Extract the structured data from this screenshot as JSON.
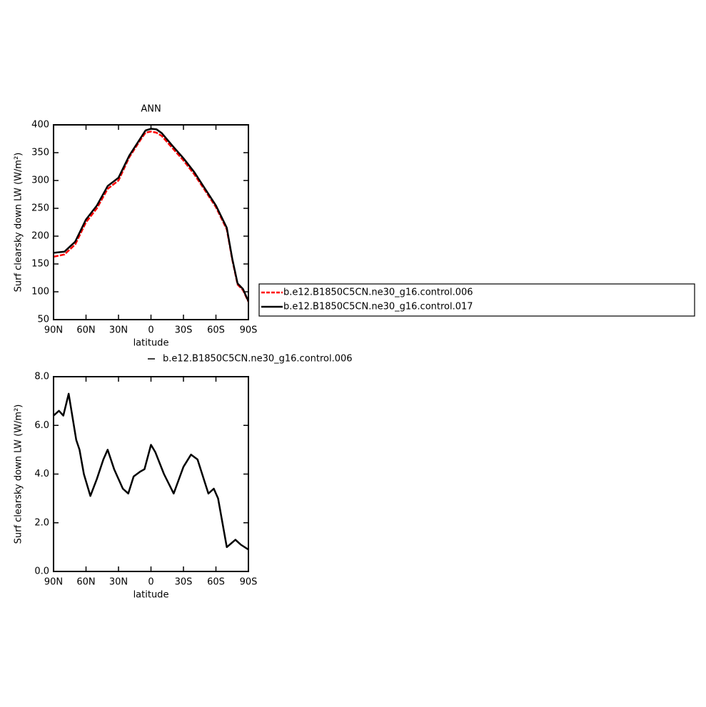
{
  "chart_data": [
    {
      "type": "line",
      "title": "ANN",
      "xlabel": "latitude",
      "ylabel": "Surf clearsky down LW (W/m²)",
      "x": [
        90,
        80,
        70,
        60,
        50,
        40,
        30,
        20,
        10,
        5,
        0,
        -5,
        -10,
        -20,
        -30,
        -40,
        -50,
        -60,
        -70,
        -75,
        -80,
        -85,
        -90
      ],
      "series": [
        {
          "name": "b.e12.B1850C5CN.ne30_g16.control.006",
          "color": "#ff0000",
          "dash": true,
          "values": [
            163,
            167,
            185,
            225,
            250,
            285,
            300,
            342,
            372,
            386,
            388,
            386,
            380,
            358,
            336,
            311,
            282,
            252,
            212,
            158,
            113,
            103,
            82
          ]
        },
        {
          "name": "b.e12.B1850C5CN.ne30_g16.control.017",
          "color": "#000000",
          "dash": false,
          "values": [
            170,
            172,
            190,
            230,
            255,
            290,
            305,
            345,
            375,
            390,
            393,
            392,
            385,
            362,
            340,
            315,
            285,
            255,
            215,
            160,
            115,
            105,
            83
          ]
        }
      ],
      "xlim": [
        90,
        -90
      ],
      "ylim": [
        50,
        400
      ],
      "xticks": [
        {
          "value": 90,
          "label": "90N"
        },
        {
          "value": 60,
          "label": "60N"
        },
        {
          "value": 30,
          "label": "30N"
        },
        0,
        {
          "value": -30,
          "label": "30S"
        },
        {
          "value": -60,
          "label": "60S"
        },
        {
          "value": -90,
          "label": "90S"
        }
      ],
      "yticks": [
        50,
        100,
        150,
        200,
        250,
        300,
        350,
        400
      ],
      "legend": "right"
    },
    {
      "type": "line",
      "xlabel": "latitude",
      "ylabel": "Surf clearsky down LW (W/m²)",
      "x": [
        90,
        85,
        81,
        76,
        69,
        66,
        62,
        56,
        50,
        44,
        40,
        34,
        26,
        21,
        16,
        10,
        6,
        0,
        -4,
        -12,
        -21,
        -30,
        -37,
        -43,
        -53,
        -58,
        -62,
        -70,
        -78,
        -83,
        -90
      ],
      "series": [
        {
          "name": "b.e12.B1850C5CN.ne30_g16.control.006",
          "color": "#000000",
          "dash": false,
          "values": [
            6.4,
            6.6,
            6.4,
            7.3,
            5.4,
            5.0,
            4.0,
            3.1,
            3.8,
            4.6,
            5.0,
            4.2,
            3.4,
            3.2,
            3.9,
            4.1,
            4.2,
            5.2,
            4.9,
            4.0,
            3.2,
            4.3,
            4.8,
            4.6,
            3.2,
            3.4,
            3.0,
            1.0,
            1.3,
            1.1,
            0.9
          ]
        }
      ],
      "xlim": [
        90,
        -90
      ],
      "ylim": [
        0,
        8
      ],
      "xticks": [
        {
          "value": 90,
          "label": "90N"
        },
        {
          "value": 60,
          "label": "60N"
        },
        {
          "value": 30,
          "label": "30N"
        },
        0,
        {
          "value": -30,
          "label": "30S"
        },
        {
          "value": -60,
          "label": "60S"
        },
        {
          "value": -90,
          "label": "90S"
        }
      ],
      "yticks": [
        {
          "value": 0,
          "label": "0.0"
        },
        {
          "value": 2,
          "label": "2.0"
        },
        {
          "value": 4,
          "label": "4.0"
        },
        {
          "value": 6,
          "label": "6.0"
        },
        {
          "value": 8,
          "label": "8.0"
        }
      ],
      "legend": "top"
    }
  ]
}
